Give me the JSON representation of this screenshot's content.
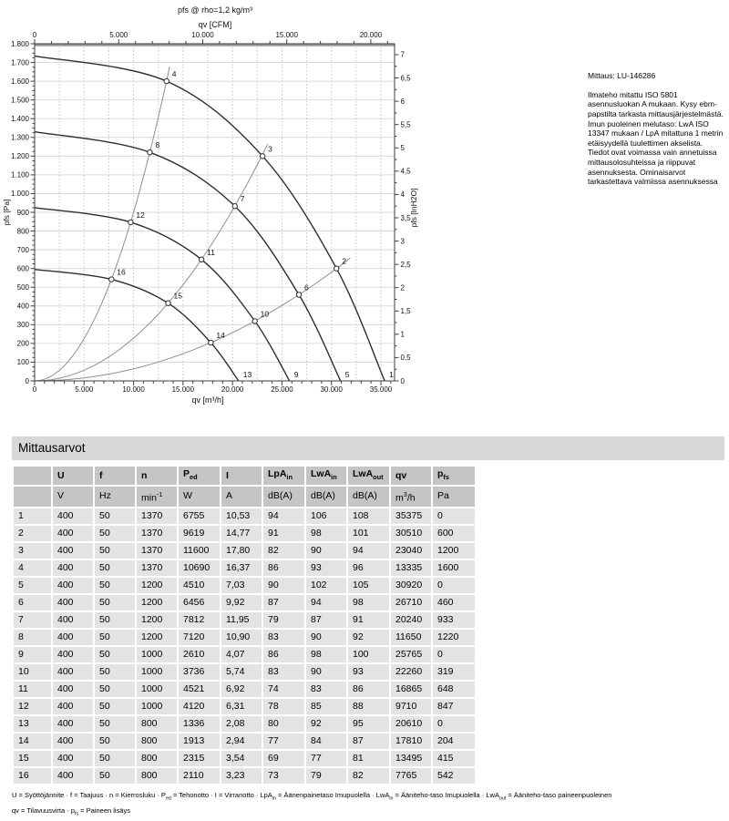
{
  "chart_note": {
    "measurement": "Mittaus: LU-146286",
    "text": "Ilmateho mitattu ISO 5801 asennusluokan A mukaan. Kysy ebm-papstilta tarkasta mittausjärjestelmästä. Imun puoleinen melutaso: LwA ISO 13347 mukaan / LpA mitattuna 1 metrin etäisyydellä tuulettimen akselista. Tiedot ovat voimassa vain annetuissa mittausolosuhteissa ja riippuvat asennuksesta. Ominaisarvot tarkastettava valmiissa asennuksessa"
  },
  "chart_data": {
    "type": "line",
    "title": "pfs @ rho=1,2 kg/m³",
    "top_axis": {
      "label": "qv [CFM]",
      "tick_step": 5000,
      "minor_step": 1000,
      "cfm_to_m3h": 1.699011,
      "tick_labels": [
        "0",
        "5.000",
        "10.000",
        "15.000",
        "20.000"
      ]
    },
    "bottom_axis": {
      "label": "qv [m³/h]",
      "tick_step": 5000,
      "minor_step": 1000,
      "range": [
        0,
        36400
      ],
      "tick_labels": [
        "0",
        "5.000",
        "10.000",
        "15.000",
        "20.000",
        "25.000",
        "30.000",
        "35.000"
      ]
    },
    "left_axis": {
      "label": "pfs [Pa]",
      "tick_step": 100,
      "minor_step": 25,
      "range": [
        0,
        1800
      ],
      "tick_labels": [
        "0",
        "100",
        "200",
        "300",
        "400",
        "500",
        "600",
        "700",
        "800",
        "900",
        "1.000",
        "1.100",
        "1.200",
        "1.300",
        "1.400",
        "1.500",
        "1.600",
        "1.700",
        "1.800"
      ]
    },
    "right_axis": {
      "label": "pfs [InH2O]",
      "tick_step": 0.5,
      "minor_step": 0.25,
      "range": [
        0,
        7
      ],
      "inh2o_to_pa": 248.84,
      "tick_labels": [
        "0",
        "0,5",
        "1",
        "1,5",
        "2",
        "2,5",
        "3",
        "3,5",
        "4",
        "4,5",
        "5",
        "5,5",
        "6",
        "6,5",
        "7"
      ]
    },
    "grid": {
      "h_step": 100,
      "v_step": 2500
    },
    "series": [
      {
        "speed_min_1": "1370",
        "intercept": [
          0,
          1735
        ],
        "points": [
          {
            "label": "4",
            "qv": 13335,
            "pfs": 1600
          },
          {
            "label": "3",
            "qv": 23040,
            "pfs": 1200
          },
          {
            "label": "2",
            "qv": 30510,
            "pfs": 600
          },
          {
            "label": "1",
            "qv": 35375,
            "pfs": 0,
            "marker": false
          }
        ]
      },
      {
        "speed_min_1": "1200",
        "intercept": [
          0,
          1330
        ],
        "points": [
          {
            "label": "8",
            "qv": 11650,
            "pfs": 1220
          },
          {
            "label": "7",
            "qv": 20240,
            "pfs": 933
          },
          {
            "label": "6",
            "qv": 26710,
            "pfs": 460
          },
          {
            "label": "5",
            "qv": 30920,
            "pfs": 0,
            "marker": false
          }
        ]
      },
      {
        "speed_min_1": "1000",
        "intercept": [
          0,
          925
        ],
        "points": [
          {
            "label": "12",
            "qv": 9710,
            "pfs": 847
          },
          {
            "label": "11",
            "qv": 16865,
            "pfs": 648
          },
          {
            "label": "10",
            "qv": 22260,
            "pfs": 319
          },
          {
            "label": "9",
            "qv": 25765,
            "pfs": 0,
            "marker": false
          }
        ]
      },
      {
        "speed_min_1": "800",
        "intercept": [
          0,
          595
        ],
        "points": [
          {
            "label": "16",
            "qv": 7765,
            "pfs": 542
          },
          {
            "label": "15",
            "qv": 13495,
            "pfs": 415
          },
          {
            "label": "14",
            "qv": 17810,
            "pfs": 204
          },
          {
            "label": "13",
            "qv": 20610,
            "pfs": 0,
            "marker": false
          }
        ]
      }
    ],
    "system_lines": [
      {
        "k": 9e-06,
        "qv_end": 13650
      },
      {
        "k": 2.2785e-06,
        "qv_end": 23550
      },
      {
        "k": 6.444e-07,
        "qv_end": 31900
      }
    ],
    "colors": {
      "curve": "#2e2e2e",
      "system_line": "#8f8f8f",
      "grid_h": "#dadada",
      "grid_v": "#bdbdbd",
      "frame": "#3f3f3f",
      "frame_top": "#9a9a9a",
      "marker_fill": "#ffffff"
    }
  },
  "table": {
    "title": "Mittausarvot",
    "columns": [
      "",
      "U",
      "f",
      "n",
      [
        [
          "t",
          "P"
        ],
        [
          "sub",
          "ed"
        ]
      ],
      "I",
      [
        [
          "t",
          "LpA"
        ],
        [
          "sub",
          "in"
        ]
      ],
      [
        [
          "t",
          "LwA"
        ],
        [
          "sub",
          "in"
        ]
      ],
      [
        [
          "t",
          "LwA"
        ],
        [
          "sub",
          "out"
        ]
      ],
      "qv",
      [
        [
          "t",
          "p"
        ],
        [
          "sub",
          "fs"
        ]
      ]
    ],
    "units": [
      "",
      "V",
      "Hz",
      [
        [
          "t",
          "min"
        ],
        [
          "sup",
          "-1"
        ]
      ],
      "W",
      "A",
      "dB(A)",
      "dB(A)",
      "dB(A)",
      [
        [
          "t",
          "m"
        ],
        [
          "sup",
          "3"
        ],
        [
          "t",
          "/h"
        ]
      ],
      "Pa"
    ],
    "rows": [
      [
        "1",
        "400",
        "50",
        "1370",
        "6755",
        "10,53",
        "94",
        "106",
        "108",
        "35375",
        "0"
      ],
      [
        "2",
        "400",
        "50",
        "1370",
        "9619",
        "14,77",
        "91",
        "98",
        "101",
        "30510",
        "600"
      ],
      [
        "3",
        "400",
        "50",
        "1370",
        "11600",
        "17,80",
        "82",
        "90",
        "94",
        "23040",
        "1200"
      ],
      [
        "4",
        "400",
        "50",
        "1370",
        "10690",
        "16,37",
        "86",
        "93",
        "96",
        "13335",
        "1600"
      ],
      [
        "5",
        "400",
        "50",
        "1200",
        "4510",
        "7,03",
        "90",
        "102",
        "105",
        "30920",
        "0"
      ],
      [
        "6",
        "400",
        "50",
        "1200",
        "6456",
        "9,92",
        "87",
        "94",
        "98",
        "26710",
        "460"
      ],
      [
        "7",
        "400",
        "50",
        "1200",
        "7812",
        "11,95",
        "79",
        "87",
        "91",
        "20240",
        "933"
      ],
      [
        "8",
        "400",
        "50",
        "1200",
        "7120",
        "10,90",
        "83",
        "90",
        "92",
        "11650",
        "1220"
      ],
      [
        "9",
        "400",
        "50",
        "1000",
        "2610",
        "4,07",
        "86",
        "98",
        "100",
        "25765",
        "0"
      ],
      [
        "10",
        "400",
        "50",
        "1000",
        "3736",
        "5,74",
        "83",
        "90",
        "93",
        "22260",
        "319"
      ],
      [
        "11",
        "400",
        "50",
        "1000",
        "4521",
        "6,92",
        "74",
        "83",
        "86",
        "16865",
        "648"
      ],
      [
        "12",
        "400",
        "50",
        "1000",
        "4120",
        "6,31",
        "78",
        "85",
        "88",
        "9710",
        "847"
      ],
      [
        "13",
        "400",
        "50",
        "800",
        "1336",
        "2,08",
        "80",
        "92",
        "95",
        "20610",
        "0"
      ],
      [
        "14",
        "400",
        "50",
        "800",
        "1913",
        "2,94",
        "77",
        "84",
        "87",
        "17810",
        "204"
      ],
      [
        "15",
        "400",
        "50",
        "800",
        "2315",
        "3,54",
        "69",
        "77",
        "81",
        "13495",
        "415"
      ],
      [
        "16",
        "400",
        "50",
        "800",
        "2110",
        "3,23",
        "73",
        "79",
        "82",
        "7765",
        "542"
      ]
    ]
  },
  "legend_lines": [
    [
      [
        "t",
        "U = Syöttöjännite · f = Taajuus · n = Kierrosluku · P"
      ],
      [
        "sub",
        "ed"
      ],
      [
        "t",
        " = Tehonotto · I = Virranotto · LpA"
      ],
      [
        "sub",
        "in"
      ],
      [
        "t",
        " = Äänenpainetaso Imupuolella · LwA"
      ],
      [
        "sub",
        "in"
      ],
      [
        "t",
        " = Ääniteho-taso Imupuolella · LwA"
      ],
      [
        "sub",
        "out"
      ],
      [
        "t",
        " = Ääniteho-taso paineenpuoleinen"
      ]
    ],
    [
      [
        "t",
        "qv = Tilavuusvirta · p"
      ],
      [
        "sub",
        "fs"
      ],
      [
        "t",
        " = Paineen lisäys"
      ]
    ]
  ]
}
